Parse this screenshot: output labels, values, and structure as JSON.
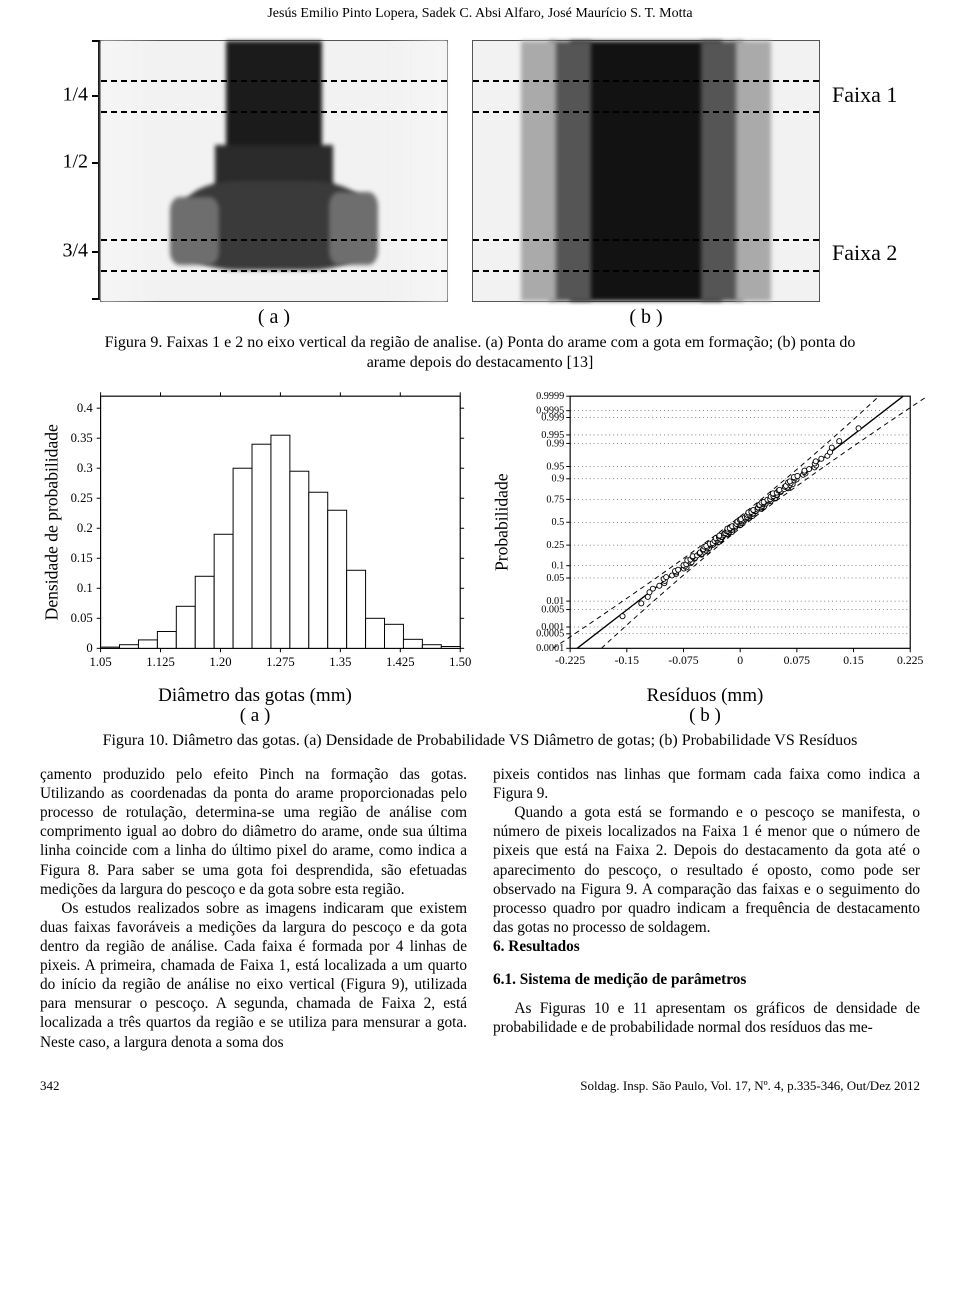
{
  "authors": "Jesús Emilio Pinto Lopera, Sadek C. Absi Alfaro, José Maurício S. T. Motta",
  "fig9": {
    "y_ticks": [
      {
        "label": "1/4",
        "pct": 21
      },
      {
        "label": "1/2",
        "pct": 47
      },
      {
        "label": "3/4",
        "pct": 81
      }
    ],
    "faixa1_top_pct": 15,
    "faixa1_bot_pct": 27,
    "faixa2_top_pct": 76,
    "faixa2_bot_pct": 88,
    "right_labels": [
      {
        "label": "Faixa 1",
        "pct": 21
      },
      {
        "label": "Faixa 2",
        "pct": 82
      }
    ],
    "sub_a": "( a )",
    "sub_b": "( b )",
    "caption": "Figura 9. Faixas 1 e 2 no eixo vertical da região de analise. (a) Ponta do arame com a gota em formação; (b) ponta do arame depois do destacamento [13]"
  },
  "fig10": {
    "hist": {
      "ylabel": "Densidade de probabilidade",
      "xlabel": "Diâmetro das gotas (mm)",
      "sub": "( a )",
      "x_ticks": [
        "1.05",
        "1.125",
        "1.20",
        "1.275",
        "1.35",
        "1.425",
        "1.50"
      ],
      "y_ticks": [
        "0",
        "0.05",
        "0.1",
        "0.15",
        "0.2",
        "0.25",
        "0.3",
        "0.35",
        "0.4"
      ],
      "y_max": 0.42,
      "bars": [
        0.002,
        0.006,
        0.014,
        0.028,
        0.07,
        0.12,
        0.19,
        0.3,
        0.34,
        0.355,
        0.295,
        0.26,
        0.23,
        0.13,
        0.05,
        0.04,
        0.015,
        0.006,
        0.003
      ],
      "bar_color": "#ffffff",
      "bar_border": "#000000",
      "axis_color": "#000000",
      "bg": "#ffffff"
    },
    "prob": {
      "ylabel": "Probabilidade",
      "xlabel": "Resíduos (mm)",
      "sub": "( b )",
      "x_ticks": [
        "-0.225",
        "-0.15",
        "-0.075",
        "0",
        "0.075",
        "0.15",
        "0.225"
      ],
      "y_ticks": [
        "0.0001",
        "0.0005",
        "0.001",
        "0.005",
        "0.01",
        "0.05",
        "0.1",
        "0.25",
        "0.5",
        "0.75",
        "0.9",
        "0.95",
        "0.99",
        "0.995",
        "0.999",
        "0.9995",
        "0.9999"
      ],
      "marker_color": "#ffffff",
      "marker_border": "#000000",
      "line_color": "#000000",
      "axis_color": "#000000"
    },
    "caption": "Figura 10. Diâmetro das gotas.  (a) Densidade de Probabilidade VS Diâmetro de gotas; (b) Probabilidade VS Resíduos"
  },
  "body": {
    "left": [
      "çamento produzido pelo efeito Pinch na formação das gotas. Utilizando as coordenadas da ponta do arame proporcionadas pelo processo de rotulação, determina-se uma região de análise com comprimento igual ao dobro do diâmetro do arame, onde sua última linha coincide com a linha do último pixel do arame, como indica a Figura 8. Para saber se uma gota foi desprendida, são efetuadas medições da largura do pescoço e da gota sobre esta região.",
      "Os estudos realizados sobre as imagens indicaram que existem duas faixas favoráveis a medições da largura do pescoço e da gota dentro da região de análise. Cada faixa é formada por 4 linhas de pixeis. A primeira, chamada de Faixa 1, está localizada a um quarto do início da região de análise no eixo vertical (Figura 9), utilizada para mensurar o pescoço. A segunda, chamada de Faixa 2, está localizada a três quartos da região e se utiliza para mensurar a gota. Neste caso, a largura denota a soma dos"
    ],
    "right": [
      "pixeis contidos nas linhas que formam cada faixa como indica a Figura 9.",
      "Quando a gota está se formando e o pescoço se manifesta, o número de pixeis localizados na Faixa 1 é menor que o número de pixeis que está na Faixa 2.  Depois do destacamento da gota até o aparecimento do pescoço, o resultado é oposto, como pode ser observado na Figura 9. A comparação das faixas e o seguimento do processo quadro por quadro indicam a frequência de destacamento das gotas no processo de soldagem."
    ],
    "sec6": "6.  Resultados",
    "sec61": "6.1. Sistema de medição de parâmetros",
    "right_after": "As Figuras 10 e 11 apresentam os gráficos de densidade de probabilidade e de probabilidade normal dos resíduos das me-"
  },
  "footer": {
    "page": "342",
    "journal": "Soldag. Insp. São Paulo, Vol. 17, Nº. 4, p.335-346, Out/Dez 2012"
  },
  "palette": {
    "text": "#000000",
    "bg": "#ffffff",
    "gray_light": "#d8d8d8",
    "gray_mid": "#8a8a8a",
    "gray_dark": "#2b2b2b"
  }
}
